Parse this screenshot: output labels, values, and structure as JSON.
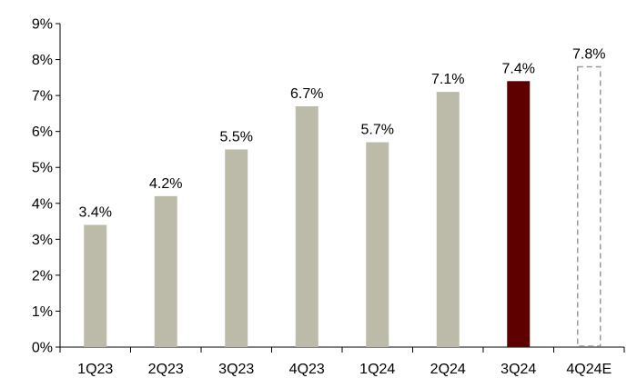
{
  "chart_data": {
    "type": "bar",
    "categories": [
      "1Q23",
      "2Q23",
      "3Q23",
      "4Q23",
      "1Q24",
      "2Q24",
      "3Q24",
      "4Q24E"
    ],
    "values": [
      3.4,
      4.2,
      5.5,
      6.7,
      5.7,
      7.1,
      7.4,
      7.8
    ],
    "data_labels": [
      "3.4%",
      "4.2%",
      "5.5%",
      "6.7%",
      "5.7%",
      "7.1%",
      "7.4%",
      "7.8%"
    ],
    "bar_styles": [
      "actual",
      "actual",
      "actual",
      "actual",
      "actual",
      "actual",
      "highlight",
      "estimate"
    ],
    "y_ticks": [
      0,
      1,
      2,
      3,
      4,
      5,
      6,
      7,
      8,
      9
    ],
    "y_tick_labels": [
      "0%",
      "1%",
      "2%",
      "3%",
      "4%",
      "5%",
      "6%",
      "7%",
      "8%",
      "9%"
    ],
    "ylim": [
      0,
      9
    ],
    "grid": false,
    "legend": "none",
    "colors": {
      "actual": "#bcbaa9",
      "highlight": "#5e0000",
      "estimate_outline": "#999999",
      "axis": "#000000"
    }
  }
}
